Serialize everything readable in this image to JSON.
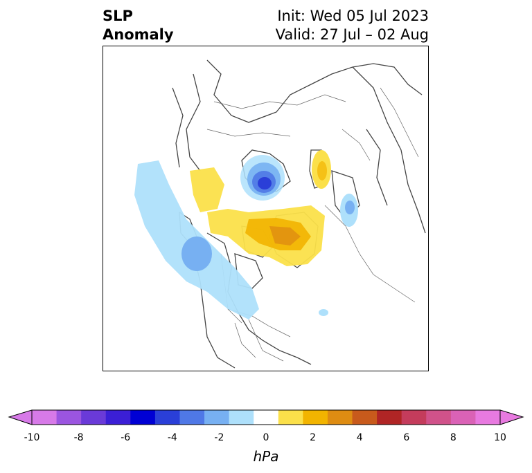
{
  "title": {
    "left_line1": "SLP",
    "left_line2": "Anomaly",
    "init": "Init: Wed 05 Jul 2023",
    "valid": "Valid: 27 Jul – 02 Aug"
  },
  "colorbar": {
    "unit": "hPa",
    "min": -10,
    "max": 10,
    "extend": "both",
    "tick_labels": [
      "-10",
      "-8",
      "-6",
      "-4",
      "-2",
      "0",
      "2",
      "4",
      "6",
      "8",
      "10"
    ],
    "levels": [
      -9,
      -8,
      -7,
      -6,
      -5,
      -4,
      -3,
      -2,
      -1,
      1,
      2,
      3,
      4,
      5,
      6,
      7,
      8,
      9
    ],
    "colors": [
      "#d77ae8",
      "#9b55e0",
      "#6a3ad8",
      "#3b1fd6",
      "#0000d4",
      "#2a3fd8",
      "#4f78e6",
      "#77b0f2",
      "#aee0fb",
      "#ffffff",
      "#fbe04a",
      "#f2b400",
      "#de8c12",
      "#c85a1c",
      "#b02525",
      "#c43c5c",
      "#d0528a",
      "#da62b6",
      "#e87ae0"
    ],
    "under_color": "#d77ae8",
    "over_color": "#e87ae0"
  },
  "map": {
    "projection": "polar-stereographic",
    "features": [
      "coastlines",
      "country-borders",
      "state-borders"
    ],
    "anomalies": [
      {
        "region": "Arctic Ocean north of Siberia",
        "sign": "negative",
        "peak_hpa": -5
      },
      {
        "region": "Greenland and Canadian Archipelago",
        "sign": "positive",
        "peak_hpa": 3
      },
      {
        "region": "Scandinavia / Baltic",
        "sign": "positive",
        "peak_hpa": 2
      },
      {
        "region": "Gulf of Alaska",
        "sign": "negative",
        "peak_hpa": -3
      },
      {
        "region": "North Atlantic near Iceland",
        "sign": "negative",
        "peak_hpa": -2
      }
    ]
  }
}
